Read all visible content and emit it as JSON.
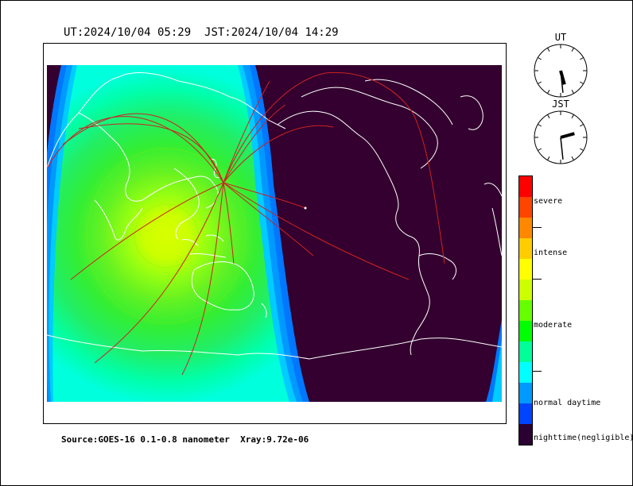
{
  "header": {
    "ut": "UT:2024/10/04 05:29",
    "jst": "JST:2024/10/04 14:29"
  },
  "clocks": {
    "ut": {
      "label": "UT",
      "hour": 5,
      "minute": 29
    },
    "jst": {
      "label": "JST",
      "hour": 14,
      "minute": 29
    }
  },
  "source": {
    "text": "Source:GOES-16 0.1-0.8 nanometer  Xray:9.72e-06"
  },
  "legend": {
    "levels": [
      "severe",
      "intense",
      "moderate",
      "normal daytime",
      "nighttime(negligible)"
    ],
    "colors": [
      "#ff0000",
      "#ff4400",
      "#ff8800",
      "#ffcc00",
      "#ffff00",
      "#ccff00",
      "#66ff00",
      "#00ff00",
      "#00ff99",
      "#00ffff",
      "#0099ff",
      "#0044ff",
      "#2b0033"
    ]
  },
  "map": {
    "night_color": "#33002f",
    "coastline_color": "#ffffff",
    "path_color": "#cc2222"
  }
}
